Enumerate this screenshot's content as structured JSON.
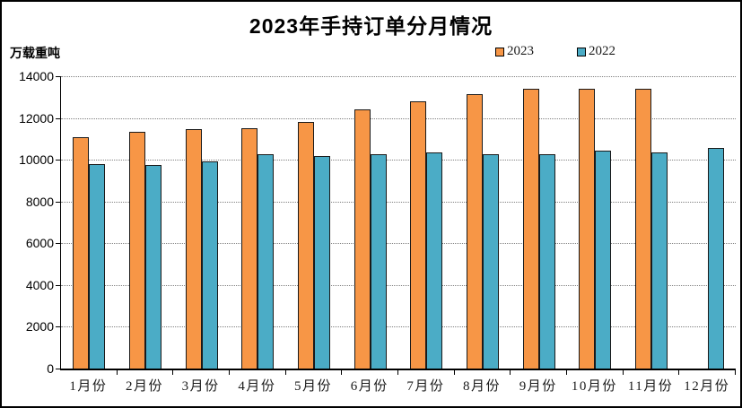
{
  "chart_data": {
    "type": "bar",
    "title": "2023年手持订单分月情况",
    "unit": "万载重吨",
    "xlabel": "",
    "ylabel": "万载重吨",
    "categories": [
      "1月份",
      "2月份",
      "3月份",
      "4月份",
      "5月份",
      "6月份",
      "7月份",
      "8月份",
      "9月份",
      "10月份",
      "11月份",
      "12月份"
    ],
    "series": [
      {
        "name": "2023",
        "color": "#F79646",
        "values": [
          11100,
          11350,
          11450,
          11500,
          11800,
          12400,
          12800,
          13150,
          13400,
          13400,
          13400,
          null
        ]
      },
      {
        "name": "2022",
        "color": "#4BACC6",
        "values": [
          9800,
          9750,
          9900,
          10250,
          10200,
          10250,
          10350,
          10250,
          10250,
          10450,
          10350,
          10550
        ]
      }
    ],
    "ylim": [
      0,
      14000
    ],
    "yticks": [
      0,
      2000,
      4000,
      6000,
      8000,
      10000,
      12000,
      14000
    ],
    "grid": "horizontal-dotted",
    "legend_position": "top-right",
    "background_color": "#FFFFFF",
    "frame_border_color": "#000000",
    "bar_border_color": "#1A1A1A",
    "gridline_color": "#808080"
  }
}
